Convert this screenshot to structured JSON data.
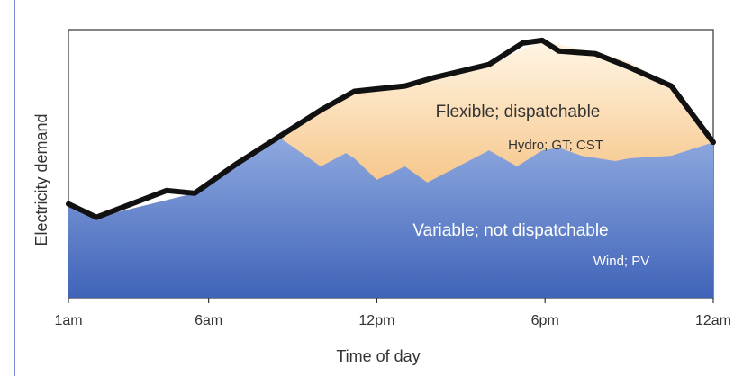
{
  "chart_data": {
    "type": "area",
    "xlabel": "Time of day",
    "ylabel": "Electricity demand",
    "x_ticks": [
      "1am",
      "6am",
      "12pm",
      "6pm",
      "12am"
    ],
    "x_tick_hours": [
      1,
      6,
      12,
      18,
      24
    ],
    "xlim": [
      1,
      24
    ],
    "ylim": [
      0,
      100
    ],
    "grid": false,
    "series": [
      {
        "name": "Variable; not dispatchable",
        "detail": "Wind; PV",
        "color": "#4a72c4",
        "x": [
          1,
          2,
          5.5,
          8.5,
          10,
          10.9,
          11.2,
          12,
          13,
          13.8,
          16,
          17,
          17.9,
          18.5,
          19.3,
          20.5,
          21,
          22.5,
          24
        ],
        "values": [
          35,
          30,
          39,
          60,
          49,
          54,
          52,
          44,
          49,
          43,
          55,
          49,
          55,
          56,
          53,
          51,
          52,
          53,
          58
        ]
      },
      {
        "name": "Flexible; dispatchable",
        "detail": "Hydro; GT; CST",
        "color": "#f2a64a",
        "x": [
          1,
          2,
          5.5,
          8.5,
          10,
          11.2,
          13,
          16,
          17.9,
          20,
          21,
          22.5,
          24
        ],
        "values": [
          35,
          30,
          39,
          60,
          70,
          77,
          79,
          87,
          96,
          91,
          88,
          79,
          58
        ]
      }
    ],
    "demand_line": {
      "color": "#111111",
      "x": [
        1,
        2,
        3.5,
        4.5,
        5.5,
        7,
        8.5,
        10,
        11.2,
        13,
        14,
        16,
        17.2,
        17.9,
        18.5,
        19.8,
        21,
        22.5,
        24
      ],
      "values": [
        35,
        30,
        36,
        40,
        39,
        50,
        60,
        70,
        77,
        79,
        82,
        87,
        95,
        96,
        92,
        91,
        86,
        79,
        58
      ]
    }
  }
}
